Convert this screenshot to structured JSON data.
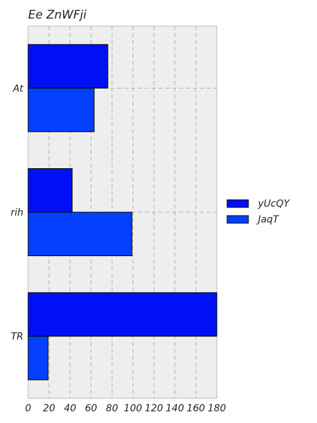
{
  "chart_data": {
    "type": "bar",
    "orientation": "horizontal",
    "title": "Ee ZnWFji",
    "xlabel": "",
    "ylabel": "",
    "categories": [
      "At",
      "rih",
      "TR"
    ],
    "series": [
      {
        "name": "yUcQY",
        "values": [
          76,
          42,
          180
        ],
        "color": "#0010f5"
      },
      {
        "name": "JaqT",
        "values": [
          63,
          99,
          19
        ],
        "color": "#0540ff"
      }
    ],
    "xlim": [
      0,
      180
    ],
    "xticks": [
      "0",
      "20",
      "40",
      "60",
      "80",
      "100",
      "120",
      "140",
      "160",
      "180"
    ],
    "grid": true,
    "legend_position": "right"
  }
}
